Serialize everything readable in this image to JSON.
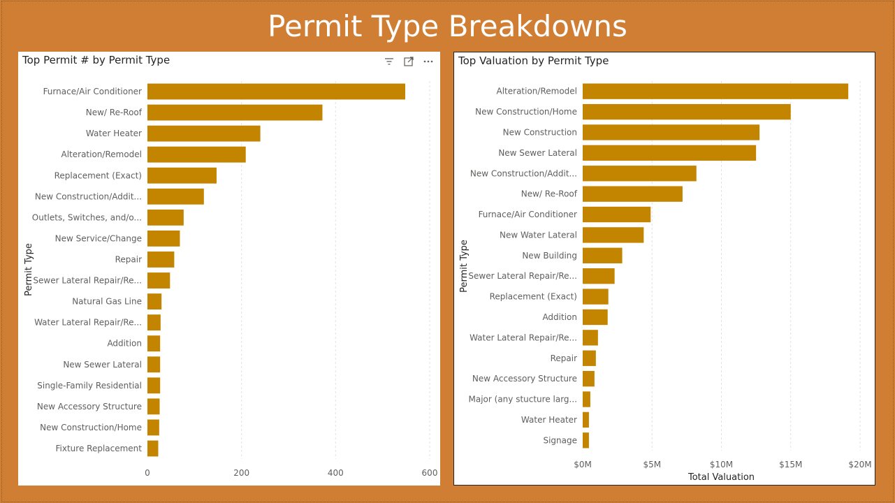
{
  "page": {
    "title": "Permit Type Breakdowns"
  },
  "colors": {
    "background": "#cf7e33",
    "bar": "#c38400",
    "panel": "#ffffff",
    "text": "#605e5c",
    "grid": "#e1e1e1"
  },
  "header_icons": [
    "filter-icon",
    "focus-mode-icon",
    "more-options-icon"
  ],
  "chart_data": [
    {
      "type": "bar",
      "orientation": "horizontal",
      "title": "Top Permit # by Permit Type",
      "ylabel": "Permit Type",
      "xlabel": "",
      "xlim": [
        0,
        600
      ],
      "xticks": [
        0,
        200,
        400,
        600
      ],
      "xtick_labels": [
        "0",
        "200",
        "400",
        "600"
      ],
      "grid": true,
      "categories": [
        "Furnace/Air Conditioner",
        "New/ Re-Roof",
        "Water Heater",
        "Alteration/Remodel",
        "Replacement (Exact)",
        "New Construction/Addit...",
        "Outlets, Switches, and/o...",
        "New Service/Change",
        "Repair",
        "Sewer Lateral Repair/Re...",
        "Natural Gas Line",
        "Water Lateral Repair/Re...",
        "Addition",
        "New Sewer Lateral",
        "Single-Family Residential",
        "New Accessory Structure",
        "New Construction/Home",
        "Fixture Replacement"
      ],
      "values": [
        548,
        372,
        240,
        209,
        147,
        120,
        77,
        69,
        57,
        48,
        30,
        28,
        27,
        27,
        27,
        26,
        25,
        23
      ]
    },
    {
      "type": "bar",
      "orientation": "horizontal",
      "title": "Top Valuation by Permit Type",
      "ylabel": "Permit Type",
      "xlabel": "Total Valuation",
      "xlim": [
        0,
        20000000
      ],
      "xticks": [
        0,
        5000000,
        10000000,
        15000000,
        20000000
      ],
      "xtick_labels": [
        "$0M",
        "$5M",
        "$10M",
        "$15M",
        "$20M"
      ],
      "grid": true,
      "categories": [
        "Alteration/Remodel",
        "New Construction/Home",
        "New Construction",
        "New Sewer Lateral",
        "New Construction/Addit...",
        "New/ Re-Roof",
        "Furnace/Air Conditioner",
        "New Water Lateral",
        "New Building",
        "Sewer Lateral Repair/Re...",
        "Replacement (Exact)",
        "Addition",
        "Water Lateral Repair/Re...",
        "Repair",
        "New Accessory Structure",
        "Major (any stucture larg...",
        "Water Heater",
        "Signage"
      ],
      "values": [
        19150000,
        15000000,
        12750000,
        12500000,
        8200000,
        7200000,
        4900000,
        4400000,
        2850000,
        2300000,
        1850000,
        1800000,
        1100000,
        950000,
        850000,
        550000,
        450000,
        450000
      ]
    }
  ]
}
